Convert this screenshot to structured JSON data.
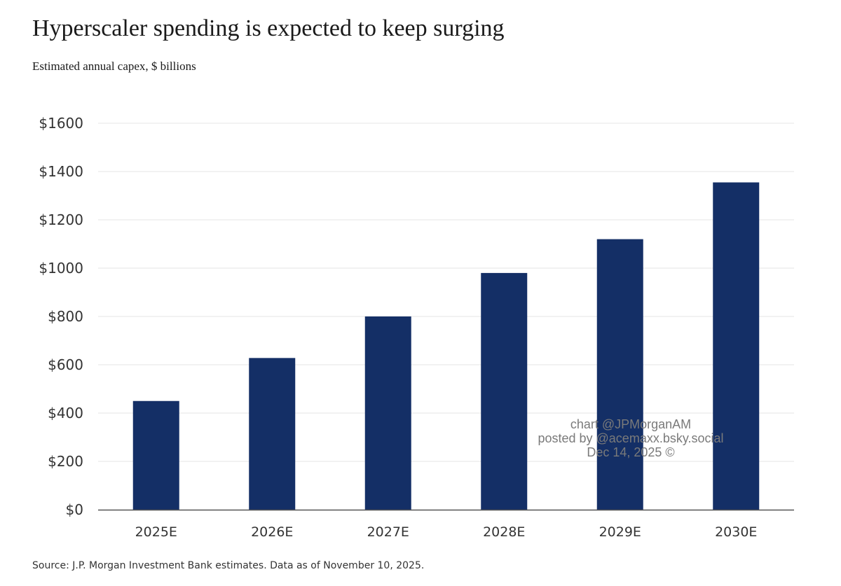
{
  "chart_data": {
    "type": "bar",
    "title": "Hyperscaler spending is expected to keep surging",
    "subtitle": "Estimated annual capex, $ billions",
    "xlabel": "",
    "ylabel": "",
    "categories": [
      "2025E",
      "2026E",
      "2027E",
      "2028E",
      "2029E",
      "2030E"
    ],
    "series": [
      {
        "name": "Estimated annual capex",
        "values": [
          450,
          628,
          800,
          980,
          1120,
          1355
        ]
      }
    ],
    "ylim": [
      0,
      1600
    ],
    "yticks": [
      0,
      200,
      400,
      600,
      800,
      1000,
      1200,
      1400,
      1600
    ],
    "ytick_labels": [
      "$0",
      "$200",
      "$400",
      "$600",
      "$800",
      "$1000",
      "$1200",
      "$1400",
      "$1600"
    ],
    "grid": true,
    "bar_color": "#142f66",
    "grid_color": "#e6e6e6",
    "axis_color": "#555555",
    "source": "Source: J.P. Morgan Investment Bank estimates. Data as of November 10, 2025."
  },
  "watermark": {
    "line1": "chart @JPMorganAM",
    "line2": "posted by @acemaxx.bsky.social",
    "line3": "Dec 14, 2025 ©"
  }
}
